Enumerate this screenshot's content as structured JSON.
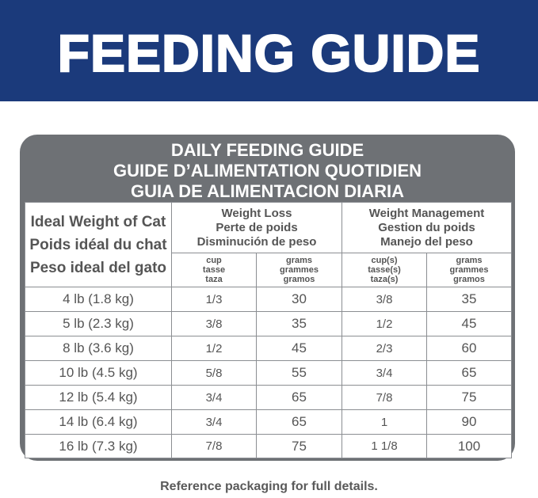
{
  "header": {
    "title": "FEEDING GUIDE"
  },
  "table": {
    "title": [
      "DAILY FEEDING GUIDE",
      "GUIDE D’ALIMENTATION QUOTIDIEN",
      "GUIA DE ALIMENTACION DIARIA"
    ],
    "first_header": [
      "Ideal Weight of Cat",
      "Poids idéal du chat",
      "Peso ideal del gato"
    ],
    "groups": [
      {
        "label": [
          "Weight Loss",
          "Perte de poids",
          "Disminución de peso"
        ],
        "units": [
          [
            "cup",
            "tasse",
            "taza"
          ],
          [
            "grams",
            "grammes",
            "gramos"
          ]
        ]
      },
      {
        "label": [
          "Weight Management",
          "Gestion du poids",
          "Manejo del peso"
        ],
        "units": [
          [
            "cup(s)",
            "tasse(s)",
            "taza(s)"
          ],
          [
            "grams",
            "grammes",
            "gramos"
          ]
        ]
      }
    ],
    "rows": [
      [
        "4 lb (1.8 kg)",
        "1/3",
        30,
        "3/8",
        35
      ],
      [
        "5 lb (2.3 kg)",
        "3/8",
        35,
        "1/2",
        45
      ],
      [
        "8 lb (3.6 kg)",
        "1/2",
        45,
        "2/3",
        60
      ],
      [
        "10 lb (4.5 kg)",
        "5/8",
        55,
        "3/4",
        65
      ],
      [
        "12 lb (5.4 kg)",
        "3/4",
        65,
        "7/8",
        75
      ],
      [
        "14 lb (6.4 kg)",
        "3/4",
        65,
        "1",
        90
      ],
      [
        "16 lb (7.3 kg)",
        "7/8",
        75,
        "1 1/8",
        100
      ]
    ]
  },
  "footer": "Reference packaging for full details."
}
